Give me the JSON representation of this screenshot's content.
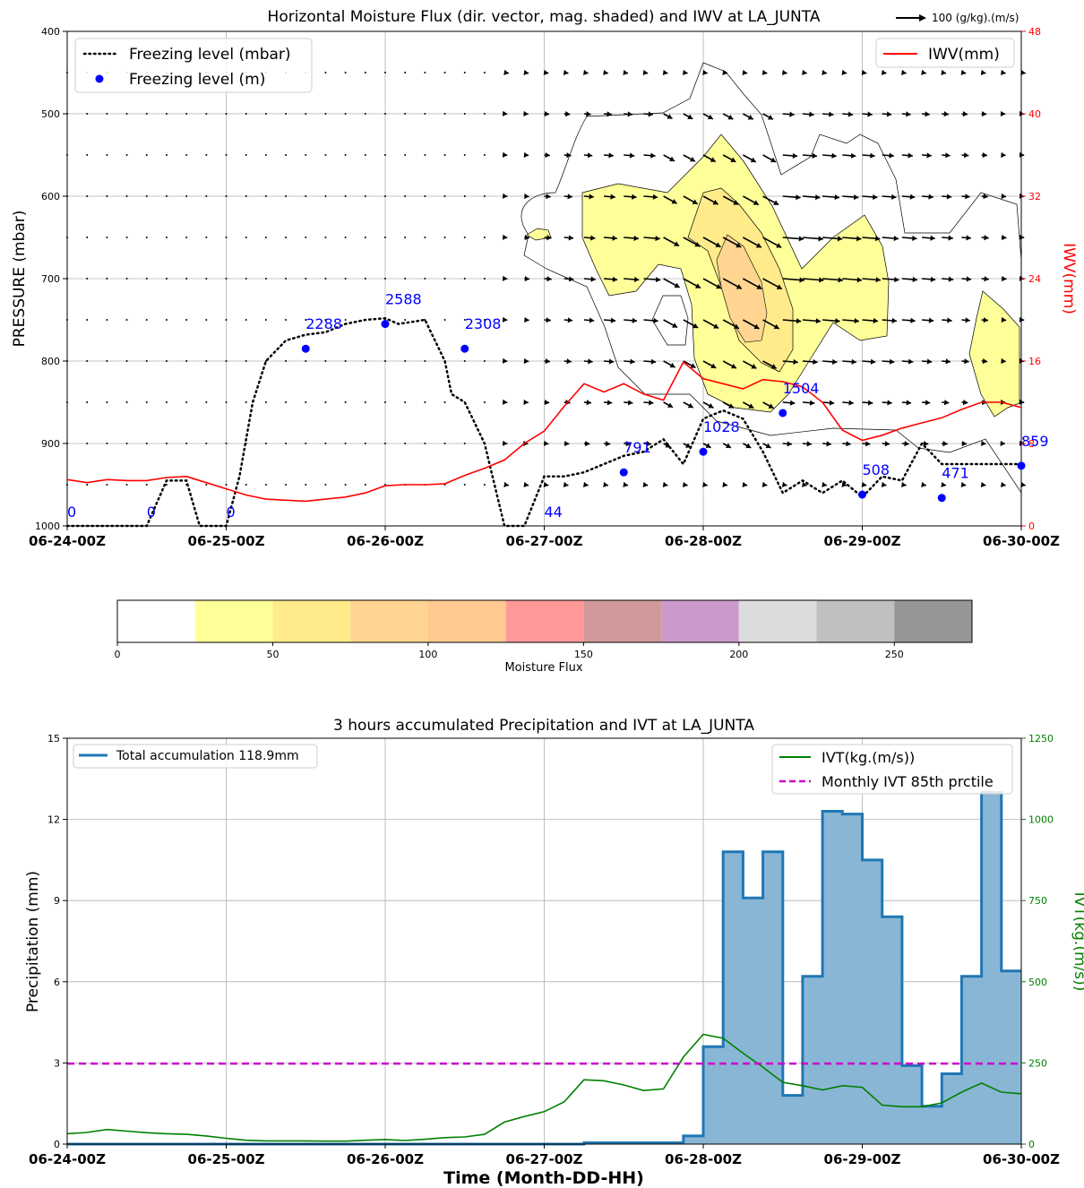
{
  "chart_data": [
    {
      "type": "line",
      "title": "Horizontal Moisture Flux (dir. vector, mag. shaded) and IWV at LA_JUNTA",
      "ylabel": "PRESSURE (mbar)",
      "y2label": "IWV(mm)",
      "vector_key_label": "100 (g/kg).(m/s)",
      "x_ticks": [
        "06-24-00Z",
        "06-25-00Z",
        "06-26-00Z",
        "06-27-00Z",
        "06-28-00Z",
        "06-29-00Z",
        "06-30-00Z"
      ],
      "xlim_hours": [
        0,
        144
      ],
      "ylim": [
        1000,
        400
      ],
      "y_ticks": [
        400,
        500,
        600,
        700,
        800,
        900,
        1000
      ],
      "y2lim": [
        0,
        48
      ],
      "y2_ticks": [
        0,
        8,
        16,
        24,
        32,
        40,
        48
      ],
      "grid": true,
      "legend_left": {
        "placement": "top-left",
        "entries": [
          "Freezing level (mbar)",
          "Freezing level (m)"
        ]
      },
      "legend_right": {
        "placement": "top-right",
        "entries": [
          "IWV(mm)"
        ]
      },
      "series": [
        {
          "name": "Freezing level (mbar)",
          "style": "dotted",
          "color": "#000000",
          "x_hours": [
            0,
            6,
            9,
            12,
            15,
            18,
            20,
            21,
            24,
            26,
            28,
            30,
            33,
            36,
            39,
            42,
            45,
            48,
            50,
            54,
            57,
            58,
            60,
            63,
            66,
            69,
            72,
            75,
            78,
            81,
            84,
            87,
            90,
            93,
            96,
            99,
            102,
            105,
            108,
            111,
            114,
            117,
            120,
            123,
            126,
            129,
            132,
            135,
            138,
            141,
            144
          ],
          "values": [
            1000,
            1000,
            1000,
            1000,
            945,
            945,
            1000,
            1000,
            1000,
            940,
            850,
            800,
            775,
            768,
            765,
            755,
            750,
            748,
            755,
            750,
            800,
            840,
            850,
            900,
            1000,
            1000,
            940,
            940,
            935,
            925,
            915,
            910,
            895,
            925,
            870,
            860,
            870,
            910,
            960,
            945,
            960,
            945,
            965,
            940,
            945,
            900,
            925,
            925,
            925,
            925,
            925
          ]
        },
        {
          "name": "Freezing level (m)",
          "color": "#0000ff",
          "x_hours": [
            0,
            12,
            24,
            36,
            48,
            60,
            72,
            84,
            96,
            108,
            120,
            132,
            144
          ],
          "pressure": [
            1000,
            1000,
            1000,
            785,
            755,
            785,
            1000,
            935,
            910,
            863,
            962,
            966,
            927
          ],
          "labels": [
            "0",
            "0",
            "0",
            "2288",
            "2588",
            "2308",
            "44",
            "791",
            "1028",
            "1504",
            "508",
            "471",
            "859"
          ]
        },
        {
          "name": "IWV(mm)",
          "axis": "right",
          "color": "#ff0000",
          "x_hours": [
            0,
            3,
            6,
            9,
            12,
            15,
            18,
            21,
            24,
            27,
            30,
            33,
            36,
            39,
            42,
            45,
            48,
            51,
            54,
            57,
            60,
            63,
            66,
            69,
            72,
            75,
            78,
            81,
            84,
            87,
            90,
            93,
            96,
            99,
            102,
            105,
            108,
            111,
            114,
            117,
            120,
            123,
            126,
            129,
            132,
            135,
            138,
            141,
            144
          ],
          "values": [
            4.5,
            4.2,
            4.5,
            4.4,
            4.4,
            4.7,
            4.8,
            4.2,
            3.6,
            3.0,
            2.6,
            2.5,
            2.4,
            2.6,
            2.8,
            3.2,
            3.9,
            4.0,
            4.0,
            4.1,
            4.9,
            5.6,
            6.4,
            8.0,
            9.2,
            11.6,
            13.8,
            13.0,
            13.8,
            12.8,
            12.2,
            15.9,
            14.3,
            13.8,
            13.3,
            14.2,
            14.0,
            13.5,
            12.0,
            9.3,
            8.3,
            8.8,
            9.5,
            10.0,
            10.5,
            11.3,
            12.0,
            12.0,
            11.5
          ]
        }
      ],
      "moisture_flux_contours_note": "shaded magnitude 25-50, 50-75, 75-100 per colorbar",
      "colorbar": {
        "label": "Moisture Flux",
        "ticks": [
          "0",
          "50",
          "100",
          "150",
          "200",
          "250"
        ],
        "bins": [
          0,
          25,
          50,
          75,
          100,
          125,
          150,
          175,
          200,
          225,
          250,
          275
        ],
        "colors": [
          "#ffffff",
          "#ffff99",
          "#ffeb8a",
          "#ffd591",
          "#ffc98f",
          "#ff9a99",
          "#d09898",
          "#cc99cc",
          "#dcdcdc",
          "#c0c0c0",
          "#969696"
        ]
      }
    },
    {
      "type": "bar",
      "title": "3 hours accumulated Precipitation and IVT at LA_JUNTA",
      "xlabel": "Time (Month-DD-HH)",
      "ylabel": "Precipitation (mm)",
      "y2label": "IVT(kg.(m/s))",
      "x_ticks": [
        "06-24-00Z",
        "06-25-00Z",
        "06-26-00Z",
        "06-27-00Z",
        "06-28-00Z",
        "06-29-00Z",
        "06-30-00Z"
      ],
      "xlim_hours": [
        0,
        144
      ],
      "ylim": [
        0,
        15
      ],
      "y_ticks": [
        0,
        3,
        6,
        9,
        12,
        15
      ],
      "y2lim": [
        0,
        1250
      ],
      "y2_ticks": [
        0,
        250,
        500,
        750,
        1000,
        1250
      ],
      "grid": true,
      "legend_left": {
        "placement": "top-left",
        "entries": [
          "Total accumulation 118.9mm"
        ]
      },
      "legend_right": {
        "placement": "top-right",
        "entries": [
          "IVT(kg.(m/s))",
          "Monthly IVT 85th prctile"
        ]
      },
      "precip_step": {
        "name": "Total accumulation 118.9mm",
        "color": "#1f77b4",
        "fill": "#8ab6d6",
        "x_hours_start": [
          0,
          3,
          6,
          9,
          12,
          15,
          18,
          21,
          24,
          27,
          30,
          33,
          36,
          39,
          42,
          45,
          48,
          51,
          54,
          57,
          60,
          63,
          66,
          69,
          72,
          75,
          78,
          81,
          84,
          87,
          90,
          93,
          96,
          99,
          102,
          105,
          108,
          111,
          114,
          117,
          120,
          123,
          126,
          129,
          132,
          135,
          138,
          141
        ],
        "values": [
          0,
          0,
          0,
          0,
          0,
          0,
          0,
          0,
          0,
          0,
          0,
          0,
          0,
          0,
          0,
          0,
          0,
          0,
          0,
          0,
          0,
          0,
          0,
          0,
          0,
          0,
          0,
          0,
          0,
          0,
          0,
          0,
          0,
          0,
          0,
          0,
          0,
          0,
          0,
          0,
          0,
          0,
          0,
          0,
          0,
          0,
          0,
          0
        ],
        "values_actual": [
          0,
          0,
          0,
          0,
          0,
          0,
          0,
          0,
          0,
          0,
          0,
          0,
          0,
          0,
          0,
          0,
          0,
          0,
          0,
          0,
          0,
          0,
          0,
          0,
          0,
          0,
          0.05,
          0.05,
          0.05,
          0.05,
          0.05,
          0.3,
          3.6,
          10.8,
          9.1,
          10.8,
          1.8,
          6.2,
          12.3,
          12.2,
          10.5,
          8.4,
          2.9,
          1.4,
          2.6,
          6.2,
          13.0,
          6.4
        ]
      },
      "series": [
        {
          "name": "IVT(kg.(m/s))",
          "axis": "right",
          "color": "#008000",
          "x_hours": [
            0,
            3,
            6,
            9,
            12,
            15,
            18,
            21,
            24,
            27,
            30,
            33,
            36,
            39,
            42,
            45,
            48,
            51,
            54,
            57,
            60,
            63,
            66,
            69,
            72,
            75,
            78,
            81,
            84,
            87,
            90,
            93,
            96,
            99,
            102,
            105,
            108,
            111,
            114,
            117,
            120,
            123,
            126,
            129,
            132,
            135,
            138,
            141,
            144
          ],
          "values": [
            32,
            36,
            45,
            40,
            35,
            32,
            30,
            25,
            18,
            12,
            10,
            10,
            10,
            9,
            9,
            12,
            14,
            11,
            15,
            20,
            22,
            30,
            68,
            85,
            100,
            130,
            198,
            195,
            182,
            165,
            170,
            268,
            338,
            326,
            280,
            237,
            190,
            180,
            167,
            180,
            175,
            120,
            115,
            115,
            127,
            160,
            188,
            160,
            155
          ]
        },
        {
          "name": "Monthly IVT 85th prctile",
          "axis": "right",
          "style": "dashed",
          "color": "#cc00cc",
          "value": 248
        }
      ]
    }
  ]
}
